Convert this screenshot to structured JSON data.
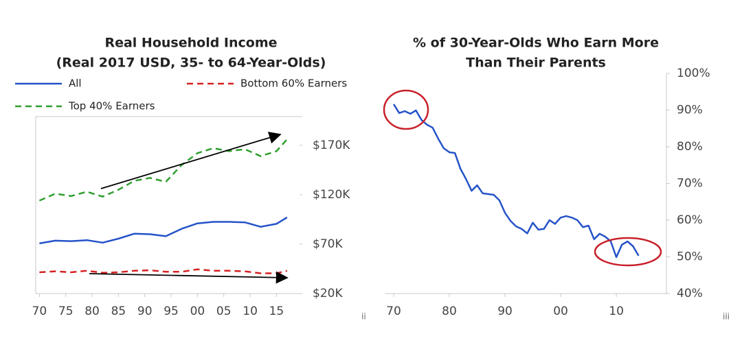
{
  "chart_data": [
    {
      "type": "line",
      "title": [
        "Real Household Income",
        "(Real 2017 USD, 35- to 64-Year-Olds)"
      ],
      "note": "ii",
      "x": [
        1970,
        1973,
        1976,
        1979,
        1982,
        1985,
        1988,
        1991,
        1994,
        1997,
        2000,
        2003,
        2006,
        2009,
        2012,
        2015,
        2017
      ],
      "series": [
        {
          "name": "All",
          "color": "#2453c8",
          "dash": false,
          "values": [
            70700,
            73500,
            73000,
            74000,
            71500,
            75500,
            80500,
            80000,
            78000,
            85500,
            91000,
            92500,
            92500,
            92000,
            87500,
            90500,
            97000
          ]
        },
        {
          "name": "Bottom 60% Earners",
          "color": "#d42020",
          "dash": true,
          "values": [
            41500,
            42500,
            41500,
            43000,
            41000,
            41500,
            43000,
            43500,
            42000,
            42000,
            44500,
            43000,
            43000,
            42500,
            40500,
            40500,
            43000
          ]
        },
        {
          "name": "Top 40% Earners",
          "color": "#2e9e2e",
          "dash": true,
          "values": [
            114000,
            121000,
            118600,
            123000,
            118000,
            125000,
            134000,
            137000,
            133000,
            150000,
            162000,
            167000,
            164000,
            166000,
            159000,
            164000,
            176000
          ]
        }
      ],
      "xlim": [
        1969.3,
        2019.9
      ],
      "xticks": [
        {
          "value": 1970,
          "label": "70"
        },
        {
          "value": 1975,
          "label": "75"
        },
        {
          "value": 1980,
          "label": "80"
        },
        {
          "value": 1985,
          "label": "85"
        },
        {
          "value": 1990,
          "label": "90"
        },
        {
          "value": 1995,
          "label": "95"
        },
        {
          "value": 2000,
          "label": "00"
        },
        {
          "value": 2005,
          "label": "05"
        },
        {
          "value": 2010,
          "label": "10"
        },
        {
          "value": 2015,
          "label": "15"
        }
      ],
      "ylim": [
        20000,
        199000
      ],
      "yticks": [
        {
          "value": 20000,
          "label": "$20K"
        },
        {
          "value": 70000,
          "label": "$70K"
        },
        {
          "value": 120000,
          "label": "$120K"
        },
        {
          "value": 170000,
          "label": "$170K"
        }
      ]
    },
    {
      "type": "line",
      "title": [
        "% of 30-Year-Olds Who Earn More",
        "Than Their Parents"
      ],
      "note": "iii",
      "x": [
        1970,
        1971,
        1972,
        1973,
        1974,
        1975,
        1976,
        1977,
        1978,
        1979,
        1980,
        1981,
        1982,
        1983,
        1984,
        1985,
        1986,
        1987,
        1988,
        1989,
        1990,
        1991,
        1992,
        1993,
        1994,
        1995,
        1996,
        1997,
        1998,
        1999,
        2000,
        2001,
        2002,
        2003,
        2004,
        2005,
        2006,
        2007,
        2008,
        2009,
        2010,
        2011,
        2012,
        2013,
        2014
      ],
      "series": [
        {
          "color": "#2453c8",
          "dash": false,
          "values": [
            91.6,
            89.2,
            89.7,
            89,
            89.9,
            87.3,
            86,
            85.2,
            82.2,
            79.6,
            78.5,
            78.3,
            74,
            71.2,
            68,
            69.5,
            67.3,
            67.1,
            66.9,
            65.4,
            62,
            59.8,
            58.3,
            57.6,
            56.4,
            59.3,
            57.4,
            57.6,
            60,
            59,
            60.7,
            61.1,
            60.7,
            60,
            58.1,
            58.5,
            54.8,
            56.3,
            55.5,
            54.2,
            49.9,
            53.3,
            54.2,
            52.9,
            50.3
          ]
        }
      ],
      "xlim": [
        1968.4,
        2019
      ],
      "xticks": [
        {
          "value": 1970,
          "label": "70"
        },
        {
          "value": 1980,
          "label": "80"
        },
        {
          "value": 1990,
          "label": "90"
        },
        {
          "value": 2000,
          "label": "00"
        },
        {
          "value": 2010,
          "label": "10"
        }
      ],
      "ylim": [
        40,
        100
      ],
      "yticks": [
        {
          "value": 40,
          "label": "40%"
        },
        {
          "value": 50,
          "label": "50%"
        },
        {
          "value": 60,
          "label": "60%"
        },
        {
          "value": 70,
          "label": "70%"
        },
        {
          "value": 80,
          "label": "80%"
        },
        {
          "value": 90,
          "label": "90%"
        },
        {
          "value": 100,
          "label": "100%"
        }
      ]
    }
  ]
}
